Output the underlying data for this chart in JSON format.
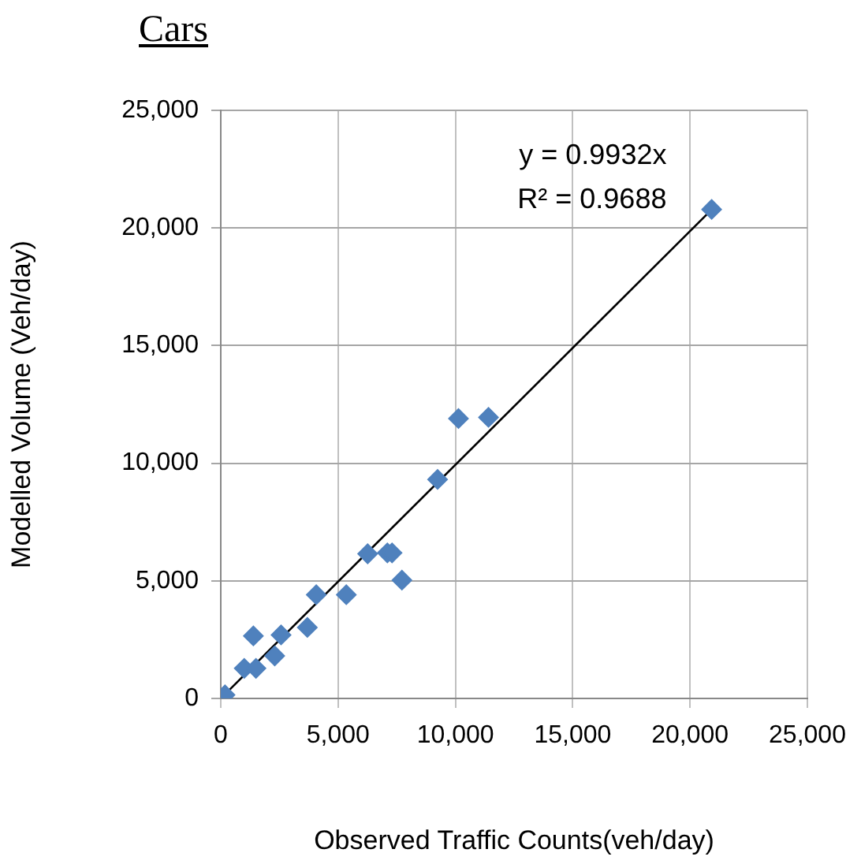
{
  "chart_data": {
    "type": "scatter",
    "title": "Cars",
    "xlabel": "Observed Traffic Counts(veh/day)",
    "ylabel": "Modelled Volume (Veh/day)",
    "annotations": [
      "y = 0.9932x",
      "R² = 0.9688"
    ],
    "x": [
      180,
      1000,
      1500,
      1390,
      2570,
      2300,
      3690,
      4070,
      5350,
      6260,
      7100,
      7300,
      7720,
      9240,
      10130,
      11410,
      20920
    ],
    "series": [
      {
        "color": "#4f81bd",
        "marker": "diamond",
        "values": [
          150,
          1280,
          1280,
          2660,
          2700,
          1810,
          3020,
          4410,
          4410,
          6150,
          6190,
          6190,
          5030,
          9310,
          11900,
          11950,
          20790
        ]
      },
      {
        "type": "line",
        "color": "#000000",
        "marker": "none",
        "x": [
          0,
          20920
        ],
        "values": [
          0,
          20780
        ]
      }
    ],
    "xlim": [
      0,
      25000
    ],
    "xticks": [
      0,
      {
        "value": 5000,
        "label": "5,000"
      },
      {
        "value": 10000,
        "label": "10,000"
      },
      {
        "value": 15000,
        "label": "15,000"
      },
      {
        "value": 20000,
        "label": "20,000"
      },
      {
        "value": 25000,
        "label": "25,000"
      }
    ],
    "ylim": [
      0,
      25000
    ],
    "yticks": [
      0,
      {
        "value": 5000,
        "label": "5,000"
      },
      {
        "value": 10000,
        "label": "10,000"
      },
      {
        "value": 15000,
        "label": "15,000"
      },
      {
        "value": 20000,
        "label": "20,000"
      },
      {
        "value": 25000,
        "label": "25,000"
      }
    ],
    "grid": true,
    "legend": false
  }
}
